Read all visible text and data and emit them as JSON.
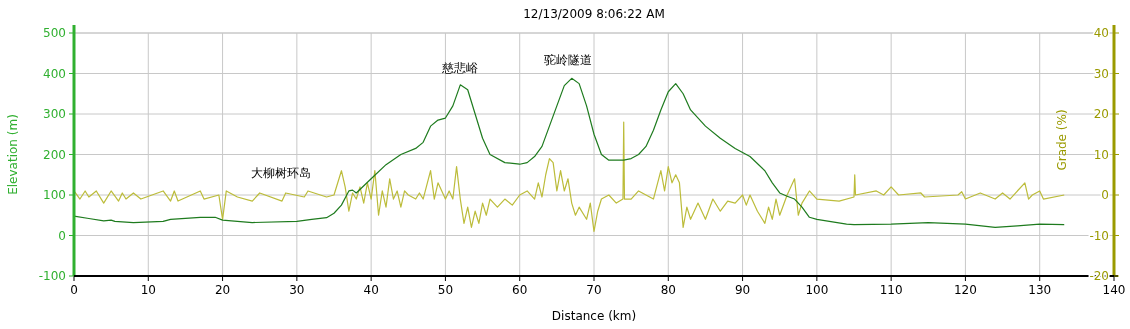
{
  "chart_data": {
    "type": "line",
    "title": "12/13/2009 8:06:22 AM",
    "xlabel": "Distance (km)",
    "ylabel": "Elevation (m)",
    "y2label": "Grade (%)",
    "xlim": [
      0,
      140
    ],
    "xticks": [
      0,
      10,
      20,
      30,
      40,
      50,
      60,
      70,
      80,
      90,
      100,
      110,
      120,
      130,
      140
    ],
    "ylim": [
      -100,
      500
    ],
    "yticks": [
      -100,
      0,
      100,
      200,
      300,
      400,
      500
    ],
    "y2lim": [
      -20,
      40
    ],
    "y2ticks": [
      -20,
      -10,
      0,
      10,
      20,
      30,
      40
    ],
    "grid": true,
    "annotations": [
      "大柳树环岛",
      "慈悲峪",
      "驼岭隧道"
    ],
    "series": [
      {
        "color": "#bcbc3a",
        "axis": "y2",
        "x": [
          0,
          0.8,
          1.5,
          2,
          3,
          4,
          5,
          6,
          6.5,
          7,
          8,
          9,
          12,
          13,
          13.5,
          14,
          17,
          17.5,
          19.5,
          20,
          20.5,
          22,
          24,
          25,
          28,
          28.5,
          31,
          31.5,
          34,
          35,
          36,
          36.5,
          37,
          37.5,
          38,
          38.5,
          39,
          39.5,
          40,
          40.5,
          41,
          41.5,
          42,
          42.5,
          43,
          43.5,
          44,
          44.5,
          45,
          46,
          46.5,
          47,
          48,
          48.5,
          49,
          50,
          50.5,
          51,
          51.5,
          52,
          52.5,
          53,
          53.5,
          54,
          54.5,
          55,
          55.5,
          56,
          57,
          58,
          59,
          60,
          61,
          62,
          62.5,
          63,
          63.5,
          64,
          64.5,
          65,
          65.5,
          66,
          66.5,
          67,
          67.5,
          68,
          69,
          69.5,
          70,
          70.5,
          71,
          72,
          73,
          73.9,
          74,
          74.1,
          75,
          76,
          77,
          78,
          79,
          79.5,
          80,
          80.5,
          81,
          81.5,
          82,
          82.5,
          83,
          84,
          85,
          86,
          87,
          88,
          89,
          90,
          90.5,
          91,
          92,
          93,
          93.5,
          94,
          94.5,
          95,
          96,
          97,
          97.5,
          98,
          99,
          100,
          103,
          105,
          105.1,
          105.2,
          108,
          109,
          110,
          111,
          114,
          114.5,
          119,
          119.5,
          120,
          122,
          124,
          125,
          126,
          128,
          128.5,
          129,
          130,
          130.5,
          133.3
        ],
        "values": [
          1,
          -1,
          1,
          -0.5,
          1,
          -2,
          1,
          -1.5,
          0.5,
          -1,
          0.5,
          -1,
          1,
          -1.5,
          1,
          -1.5,
          1,
          -1,
          0,
          -6,
          1,
          -0.5,
          -1.5,
          0.5,
          -1.5,
          0.5,
          -0.5,
          1,
          -0.5,
          0,
          6,
          2,
          -4,
          0.5,
          -1,
          2,
          -2,
          3,
          -1,
          6,
          -5,
          1,
          -3,
          4,
          -1,
          1,
          -3,
          1,
          0,
          -1,
          0.5,
          -1,
          6,
          -1,
          3,
          -1,
          1,
          -1,
          7,
          -1,
          -7,
          -3,
          -8,
          -4,
          -7,
          -2,
          -5,
          -1,
          -3,
          -1,
          -2.5,
          0,
          1,
          -1,
          3,
          -0.5,
          5,
          9,
          8,
          1,
          6,
          1,
          4,
          -2,
          -5,
          -3,
          -6,
          -2,
          -9,
          -4,
          -1,
          0,
          -2,
          -1,
          18,
          -1,
          -1,
          1,
          0,
          -1,
          6,
          1,
          7,
          3,
          5,
          3,
          -8,
          -3,
          -6,
          -2,
          -6,
          -1,
          -4,
          -1.5,
          -2,
          0,
          -2.5,
          0,
          -4,
          -7,
          -3,
          -6,
          -1,
          -5,
          0,
          4,
          -5,
          -2,
          1,
          -1,
          -1.5,
          -0.5,
          5,
          0,
          1,
          0,
          2,
          0,
          0.5,
          -0.5,
          0,
          0.8,
          -1,
          0.5,
          -1,
          0.5,
          -1,
          3,
          -1,
          0,
          1,
          -1,
          0
        ]
      },
      {
        "color": "#1e7b1e",
        "x": [
          0,
          2,
          4,
          5,
          5.5,
          8,
          12,
          13,
          17,
          19,
          20,
          24,
          30,
          32,
          34,
          35,
          36,
          37,
          37.5,
          38,
          40,
          42,
          44,
          46,
          47,
          47.5,
          48,
          49,
          50,
          51,
          52,
          53,
          54,
          55,
          56,
          58,
          60,
          61,
          62,
          63,
          64,
          65,
          66,
          67,
          68,
          69,
          70,
          71,
          72,
          74,
          75,
          76,
          77,
          78,
          79,
          80,
          81,
          82,
          83,
          85,
          87,
          89,
          91,
          93,
          94,
          95,
          96,
          97,
          98,
          99,
          100,
          104,
          105,
          110,
          115,
          120,
          124,
          127,
          130,
          133.3
        ],
        "values": [
          48,
          42,
          36,
          38,
          35,
          32,
          35,
          40,
          45,
          45,
          38,
          32,
          35,
          40,
          44,
          55,
          75,
          110,
          112,
          105,
          140,
          175,
          200,
          215,
          230,
          250,
          270,
          285,
          290,
          320,
          372,
          360,
          300,
          240,
          200,
          180,
          176,
          180,
          195,
          220,
          270,
          320,
          370,
          388,
          375,
          320,
          250,
          200,
          186,
          186,
          190,
          200,
          220,
          260,
          310,
          355,
          375,
          350,
          310,
          270,
          240,
          215,
          195,
          160,
          130,
          105,
          97,
          90,
          70,
          45,
          40,
          28,
          27,
          28,
          32,
          28,
          20,
          24,
          28,
          27
        ]
      }
    ]
  }
}
